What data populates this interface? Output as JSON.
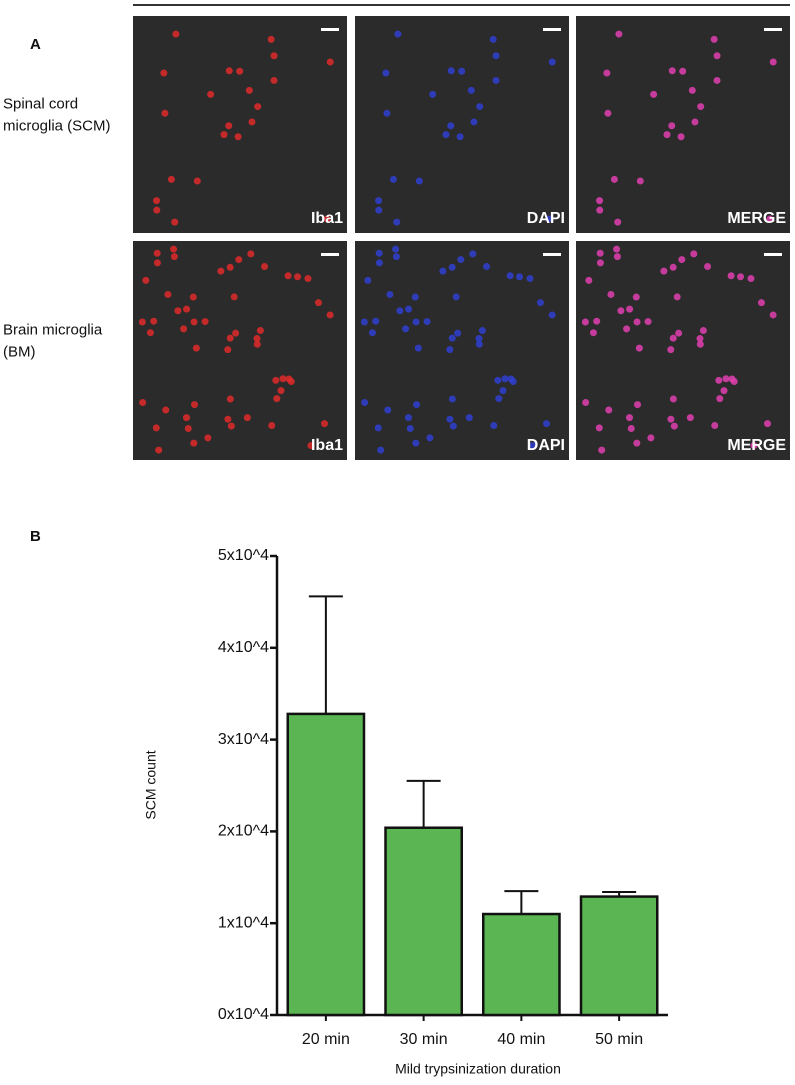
{
  "panel_a": {
    "label": "A",
    "rows": [
      {
        "label": "Spinal cord microglia (SCM)",
        "images": [
          "Iba1",
          "DAPI",
          "MERGE"
        ]
      },
      {
        "label": "Brain microglia (BM)",
        "images": [
          "Iba1",
          "DAPI",
          "MERGE"
        ]
      }
    ]
  },
  "chart_data": {
    "type": "bar",
    "panel_label": "B",
    "categories": [
      "20 min",
      "30 min",
      "40 min",
      "50 min"
    ],
    "values": [
      32800,
      20400,
      11000,
      12900
    ],
    "errors": [
      12800,
      5100,
      2500,
      500
    ],
    "color": "#5ab552",
    "ylim": [
      0,
      50000
    ],
    "yticks": [
      {
        "value": 0,
        "label": "0x10^4"
      },
      {
        "value": 10000,
        "label": "1x10^4"
      },
      {
        "value": 20000,
        "label": "2x10^4"
      },
      {
        "value": 30000,
        "label": "3x10^4"
      },
      {
        "value": 40000,
        "label": "4x10^4"
      },
      {
        "value": 50000,
        "label": "5x10^4"
      }
    ],
    "ylabel": "SCM count",
    "xlabel": "Mild trypsinization duration"
  }
}
